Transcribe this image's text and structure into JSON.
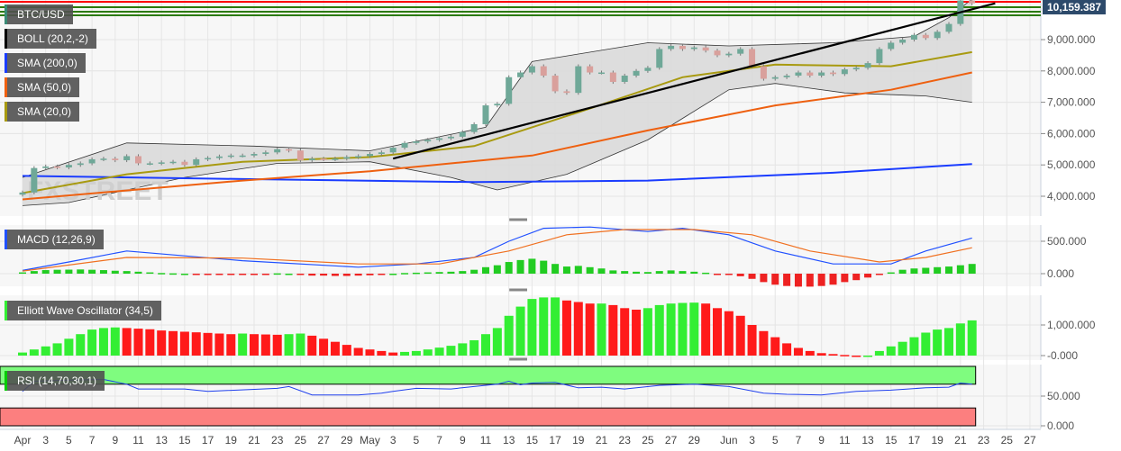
{
  "chart_data": [
    {
      "type": "candlestick",
      "title": "BTC/USD",
      "start_date": "Apr 1",
      "last_price": "10,159.387",
      "y_ticks": [
        "9,000.000",
        "8,000.000",
        "7,000.000",
        "6,000.000",
        "5,000.000",
        "4,000.000"
      ],
      "y_tick_values": [
        9000,
        8000,
        7000,
        6000,
        5000,
        4000
      ],
      "ylim": [
        3400,
        10300
      ],
      "closes": [
        4120,
        4900,
        4950,
        4920,
        5000,
        5050,
        5180,
        5200,
        5150,
        5280,
        5050,
        5050,
        5080,
        5100,
        5000,
        5180,
        5220,
        5270,
        5300,
        5300,
        5350,
        5400,
        5500,
        5460,
        5150,
        5200,
        5180,
        5200,
        5250,
        5280,
        5350,
        5400,
        5550,
        5700,
        5750,
        5800,
        5850,
        5900,
        6050,
        6300,
        6900,
        6950,
        7800,
        7950,
        8150,
        7850,
        7350,
        7300,
        8150,
        7950,
        7950,
        7650,
        7850,
        8000,
        8100,
        8700,
        8800,
        8700,
        8750,
        8650,
        8500,
        8550,
        8700,
        8150,
        7750,
        7800,
        7850,
        7950,
        7850,
        7950,
        7900,
        8050,
        8100,
        8250,
        8700,
        8900,
        9000,
        9150,
        9050,
        9250,
        9500,
        10250,
        10159
      ],
      "first_open": 4050,
      "indicators": [
        {
          "name": "BOLL (20,2,-2)",
          "color": "#000000",
          "upper": [
            [
              0,
              4600
            ],
            [
              9,
              5700
            ],
            [
              20,
              5600
            ],
            [
              30,
              5450
            ],
            [
              40,
              6200
            ],
            [
              44,
              8300
            ],
            [
              54,
              8900
            ],
            [
              61,
              8800
            ],
            [
              70,
              8900
            ],
            [
              77,
              9100
            ],
            [
              80,
              9700
            ],
            [
              82,
              10300
            ]
          ],
          "lower": [
            [
              0,
              3700
            ],
            [
              4,
              3800
            ],
            [
              14,
              4600
            ],
            [
              22,
              5050
            ],
            [
              30,
              5100
            ],
            [
              37,
              4600
            ],
            [
              41,
              4200
            ],
            [
              47,
              4700
            ],
            [
              54,
              5800
            ],
            [
              61,
              7400
            ],
            [
              65,
              7600
            ],
            [
              71,
              7300
            ],
            [
              78,
              7200
            ],
            [
              82,
              7000
            ]
          ]
        },
        {
          "name": "SMA (200,0)",
          "color": "#1a3cff",
          "points": [
            [
              0,
              4650
            ],
            [
              19,
              4550
            ],
            [
              39,
              4450
            ],
            [
              54,
              4500
            ],
            [
              70,
              4750
            ],
            [
              82,
              5030
            ]
          ]
        },
        {
          "name": "SMA (50,0)",
          "color": "#ee6010",
          "points": [
            [
              0,
              3900
            ],
            [
              19,
              4500
            ],
            [
              30,
              4800
            ],
            [
              44,
              5300
            ],
            [
              54,
              6100
            ],
            [
              65,
              6900
            ],
            [
              75,
              7400
            ],
            [
              82,
              7950
            ]
          ]
        },
        {
          "name": "SMA (20,0)",
          "color": "#a89a10",
          "points": [
            [
              0,
              4100
            ],
            [
              9,
              4700
            ],
            [
              19,
              5100
            ],
            [
              30,
              5250
            ],
            [
              39,
              5600
            ],
            [
              49,
              6800
            ],
            [
              57,
              7800
            ],
            [
              65,
              8200
            ],
            [
              75,
              8150
            ],
            [
              82,
              8600
            ]
          ]
        }
      ],
      "trendline": [
        [
          32,
          5200
        ],
        [
          84,
          10159
        ]
      ]
    },
    {
      "type": "bar+line",
      "title": "MACD (12,26,9)",
      "y_ticks": [
        "500.000",
        "0.000"
      ],
      "y_tick_values": [
        500,
        0
      ],
      "ylim": [
        -250,
        700
      ],
      "histogram": [
        20,
        40,
        55,
        60,
        62,
        65,
        60,
        55,
        45,
        40,
        30,
        20,
        10,
        5,
        0,
        -5,
        -5,
        -5,
        -5,
        -5,
        -5,
        -5,
        5,
        0,
        -20,
        -30,
        -30,
        -35,
        -35,
        -30,
        -25,
        -10,
        0,
        10,
        15,
        20,
        25,
        30,
        40,
        60,
        100,
        130,
        180,
        210,
        230,
        200,
        150,
        110,
        120,
        100,
        80,
        50,
        40,
        30,
        25,
        40,
        50,
        40,
        30,
        15,
        -5,
        -20,
        -40,
        -80,
        -130,
        -170,
        -190,
        -200,
        -200,
        -190,
        -170,
        -130,
        -100,
        -60,
        -20,
        20,
        60,
        80,
        90,
        100,
        110,
        130,
        150
      ],
      "macd": [
        [
          0,
          50
        ],
        [
          4,
          180
        ],
        [
          9,
          350
        ],
        [
          19,
          200
        ],
        [
          29,
          100
        ],
        [
          34,
          150
        ],
        [
          39,
          250
        ],
        [
          42,
          500
        ],
        [
          45,
          700
        ],
        [
          49,
          720
        ],
        [
          54,
          650
        ],
        [
          57,
          700
        ],
        [
          61,
          600
        ],
        [
          65,
          350
        ],
        [
          70,
          150
        ],
        [
          75,
          150
        ],
        [
          78,
          350
        ],
        [
          82,
          550
        ]
      ],
      "signal": [
        [
          0,
          40
        ],
        [
          9,
          250
        ],
        [
          19,
          240
        ],
        [
          29,
          150
        ],
        [
          36,
          150
        ],
        [
          42,
          350
        ],
        [
          47,
          600
        ],
        [
          52,
          680
        ],
        [
          58,
          680
        ],
        [
          63,
          600
        ],
        [
          68,
          350
        ],
        [
          74,
          180
        ],
        [
          78,
          250
        ],
        [
          82,
          400
        ]
      ]
    },
    {
      "type": "bar",
      "title": "Elliott Wave Oscillator (34,5)",
      "y_ticks": [
        "1,000.000",
        "-0.000"
      ],
      "y_tick_values": [
        1000,
        0
      ],
      "ylim": [
        -100,
        2000
      ],
      "values": [
        100,
        200,
        300,
        400,
        550,
        700,
        850,
        900,
        920,
        900,
        880,
        860,
        820,
        800,
        780,
        760,
        740,
        720,
        700,
        720,
        700,
        690,
        680,
        700,
        720,
        650,
        550,
        450,
        350,
        250,
        200,
        150,
        100,
        120,
        150,
        200,
        260,
        320,
        400,
        500,
        700,
        900,
        1300,
        1600,
        1850,
        1900,
        1900,
        1800,
        1750,
        1700,
        1700,
        1650,
        1550,
        1500,
        1550,
        1650,
        1700,
        1720,
        1730,
        1700,
        1550,
        1450,
        1300,
        1000,
        800,
        600,
        400,
        250,
        150,
        80,
        50,
        20,
        -10,
        0,
        150,
        300,
        450,
        600,
        750,
        850,
        900,
        1050,
        1150
      ]
    },
    {
      "type": "line",
      "title": "RSI (14,70,30,1)",
      "y_ticks": [
        "50.000",
        "0.000"
      ],
      "y_tick_values": [
        50,
        0
      ],
      "ylim": [
        -2,
        100
      ],
      "overbought": 70,
      "oversold": 30,
      "points": [
        [
          0,
          58
        ],
        [
          1,
          75
        ],
        [
          4,
          77
        ],
        [
          7,
          78
        ],
        [
          9,
          70
        ],
        [
          10,
          62
        ],
        [
          14,
          62
        ],
        [
          16,
          58
        ],
        [
          22,
          63
        ],
        [
          23,
          66
        ],
        [
          25,
          52
        ],
        [
          29,
          52
        ],
        [
          31,
          55
        ],
        [
          32,
          58
        ],
        [
          34,
          63
        ],
        [
          37,
          62
        ],
        [
          39,
          66
        ],
        [
          41,
          70
        ],
        [
          42,
          75
        ],
        [
          43,
          69
        ],
        [
          44,
          72
        ],
        [
          46,
          73
        ],
        [
          48,
          64
        ],
        [
          50,
          65
        ],
        [
          52,
          62
        ],
        [
          55,
          68
        ],
        [
          58,
          70
        ],
        [
          61,
          66
        ],
        [
          64,
          55
        ],
        [
          66,
          53
        ],
        [
          69,
          52
        ],
        [
          72,
          58
        ],
        [
          75,
          60
        ],
        [
          78,
          64
        ],
        [
          80,
          65
        ],
        [
          81,
          72
        ],
        [
          82,
          70
        ]
      ]
    }
  ],
  "x_ticks": [
    "Apr",
    "3",
    "5",
    "7",
    "9",
    "11",
    "13",
    "15",
    "17",
    "19",
    "21",
    "23",
    "25",
    "27",
    "29",
    "May",
    "3",
    "5",
    "7",
    "9",
    "11",
    "13",
    "15",
    "17",
    "19",
    "21",
    "23",
    "25",
    "27",
    "29",
    "Jun",
    "3",
    "5",
    "7",
    "9",
    "11",
    "13",
    "15",
    "17",
    "19",
    "21",
    "23",
    "25",
    "27"
  ],
  "x_tick_days": [
    0,
    2,
    4,
    6,
    8,
    10,
    12,
    14,
    16,
    18,
    20,
    22,
    24,
    26,
    28,
    30,
    32,
    34,
    36,
    38,
    40,
    42,
    44,
    46,
    48,
    50,
    52,
    54,
    56,
    58,
    61,
    63,
    65,
    67,
    69,
    71,
    73,
    75,
    77,
    79,
    81,
    83,
    85,
    87
  ],
  "colors": {
    "up": "#6fa898",
    "down": "#d9a09c",
    "ewo_up": "#33ee33",
    "ewo_down": "#ff1a1a",
    "macd_pos": "#22cc22",
    "macd_neg": "#ee2222",
    "macd_line": "#2050ff",
    "signal_line": "#f07020",
    "rsi_line": "#2040ee",
    "rsi_ob": "#7ffc7f",
    "rsi_os": "#fc7f7f"
  }
}
